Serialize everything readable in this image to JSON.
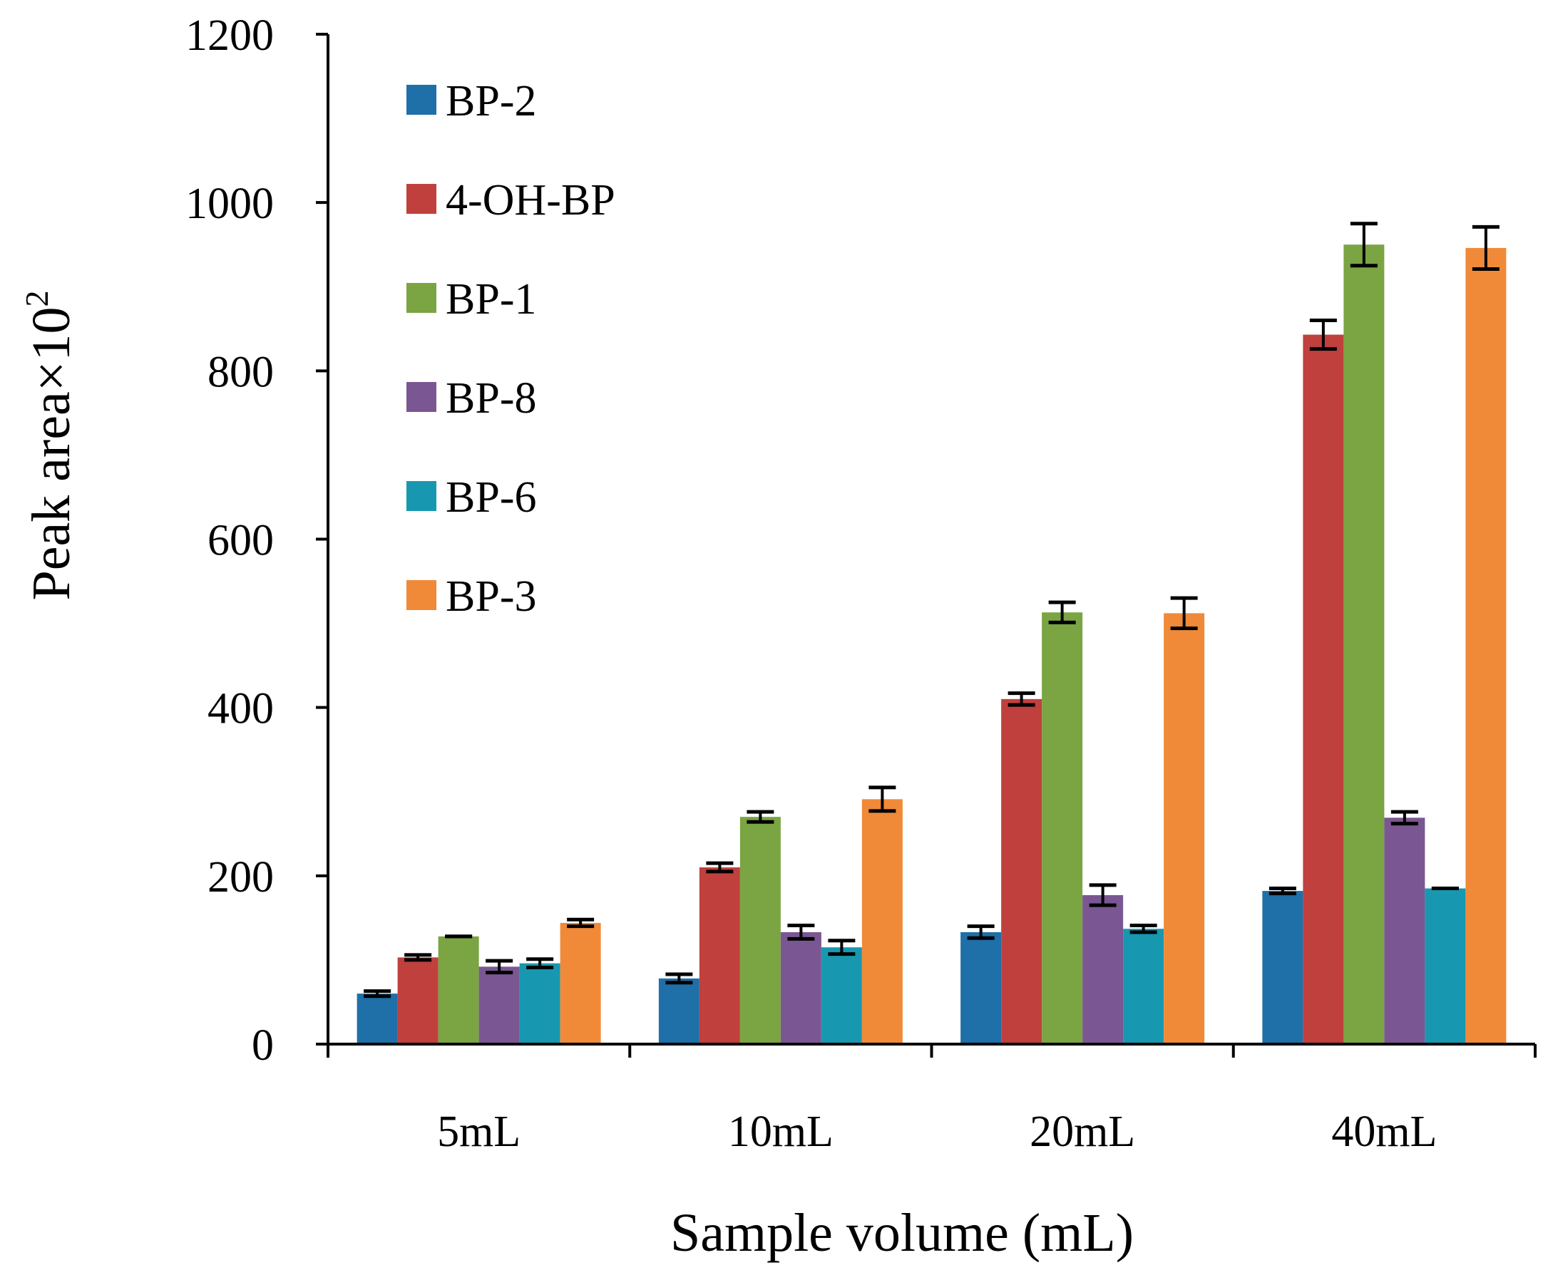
{
  "chart_data": {
    "type": "bar",
    "title": "",
    "xlabel": "Sample volume (mL)",
    "ylabel": "Peak area×10",
    "ylabel_exponent": "2",
    "ylim": [
      0,
      1200
    ],
    "yticks": [
      0,
      200,
      400,
      600,
      800,
      1000,
      1200
    ],
    "ytick_labels": [
      "0",
      "200",
      "400",
      "600",
      "800",
      "1000",
      "1200"
    ],
    "categories": [
      "5mL",
      "10mL",
      "20mL",
      "40mL"
    ],
    "grid": false,
    "legend_position": "top-left",
    "series": [
      {
        "name": "BP-2",
        "color": "#1F6FA8",
        "values": [
          60,
          78,
          133,
          182
        ],
        "errors": [
          3,
          5,
          7,
          3
        ]
      },
      {
        "name": "4-OH-BP",
        "color": "#C0403D",
        "values": [
          103,
          210,
          410,
          843
        ],
        "errors": [
          3,
          5,
          7,
          17
        ]
      },
      {
        "name": "BP-1",
        "color": "#7BA443",
        "values": [
          128,
          270,
          513,
          950
        ],
        "errors": [
          0,
          6,
          12,
          25
        ]
      },
      {
        "name": "BP-8",
        "color": "#7A5793",
        "values": [
          92,
          133,
          177,
          269
        ],
        "errors": [
          7,
          8,
          12,
          7
        ]
      },
      {
        "name": "BP-6",
        "color": "#1798B0",
        "values": [
          96,
          115,
          137,
          185
        ],
        "errors": [
          5,
          8,
          4,
          0
        ]
      },
      {
        "name": "BP-3",
        "color": "#F08A38",
        "values": [
          144,
          291,
          512,
          946
        ],
        "errors": [
          4,
          14,
          18,
          25
        ]
      }
    ]
  }
}
